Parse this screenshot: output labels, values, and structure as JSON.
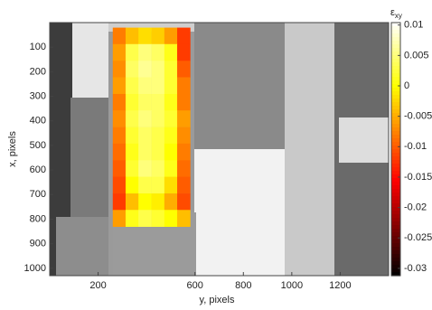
{
  "chart_data": {
    "type": "heatmap",
    "xlabel": "y, pixels",
    "ylabel": "x, pixels",
    "colorbar_label": {
      "symbol": "ε",
      "subscript": "xy"
    },
    "colormap": "hot",
    "xlim": [
      0,
      1400
    ],
    "xticks": [
      200,
      600,
      800,
      1000,
      1200
    ],
    "ylim": [
      0,
      1030
    ],
    "yticks": [
      100,
      200,
      300,
      400,
      500,
      600,
      700,
      800,
      900,
      1000
    ],
    "y_reversed": true,
    "clim": [
      -0.0312,
      0.0104
    ],
    "cticks": [
      0.01,
      0.005,
      0,
      -0.005,
      -0.01,
      -0.015,
      -0.02,
      -0.025,
      -0.03
    ],
    "x": [
      287,
      340,
      393,
      447,
      500,
      553
    ],
    "y": [
      54,
      121,
      189,
      256,
      324,
      391,
      459,
      526,
      594,
      661,
      729,
      796
    ],
    "z": [
      [
        -0.008,
        -0.004,
        -0.002,
        -0.003,
        -0.006,
        -0.012
      ],
      [
        -0.006,
        0.003,
        0.005,
        0.004,
        0.001,
        -0.012
      ],
      [
        -0.007,
        0.004,
        0.006,
        0.005,
        0.002,
        -0.01
      ],
      [
        -0.006,
        0.003,
        0.005,
        0.005,
        0.002,
        -0.008
      ],
      [
        -0.008,
        0.002,
        0.004,
        0.004,
        0.001,
        -0.008
      ],
      [
        -0.007,
        0.003,
        0.005,
        0.004,
        0.002,
        -0.006
      ],
      [
        -0.008,
        0.002,
        0.004,
        0.003,
        0.001,
        -0.007
      ],
      [
        -0.009,
        0.001,
        0.004,
        0.003,
        0.0,
        -0.008
      ],
      [
        -0.01,
        0.002,
        0.005,
        0.004,
        0.001,
        -0.009
      ],
      [
        -0.011,
        0.0,
        0.003,
        0.003,
        -0.002,
        -0.01
      ],
      [
        -0.012,
        -0.004,
        0.0,
        -0.001,
        -0.005,
        -0.011
      ],
      [
        -0.006,
        0.001,
        0.003,
        0.002,
        0.0,
        -0.004
      ]
    ]
  }
}
